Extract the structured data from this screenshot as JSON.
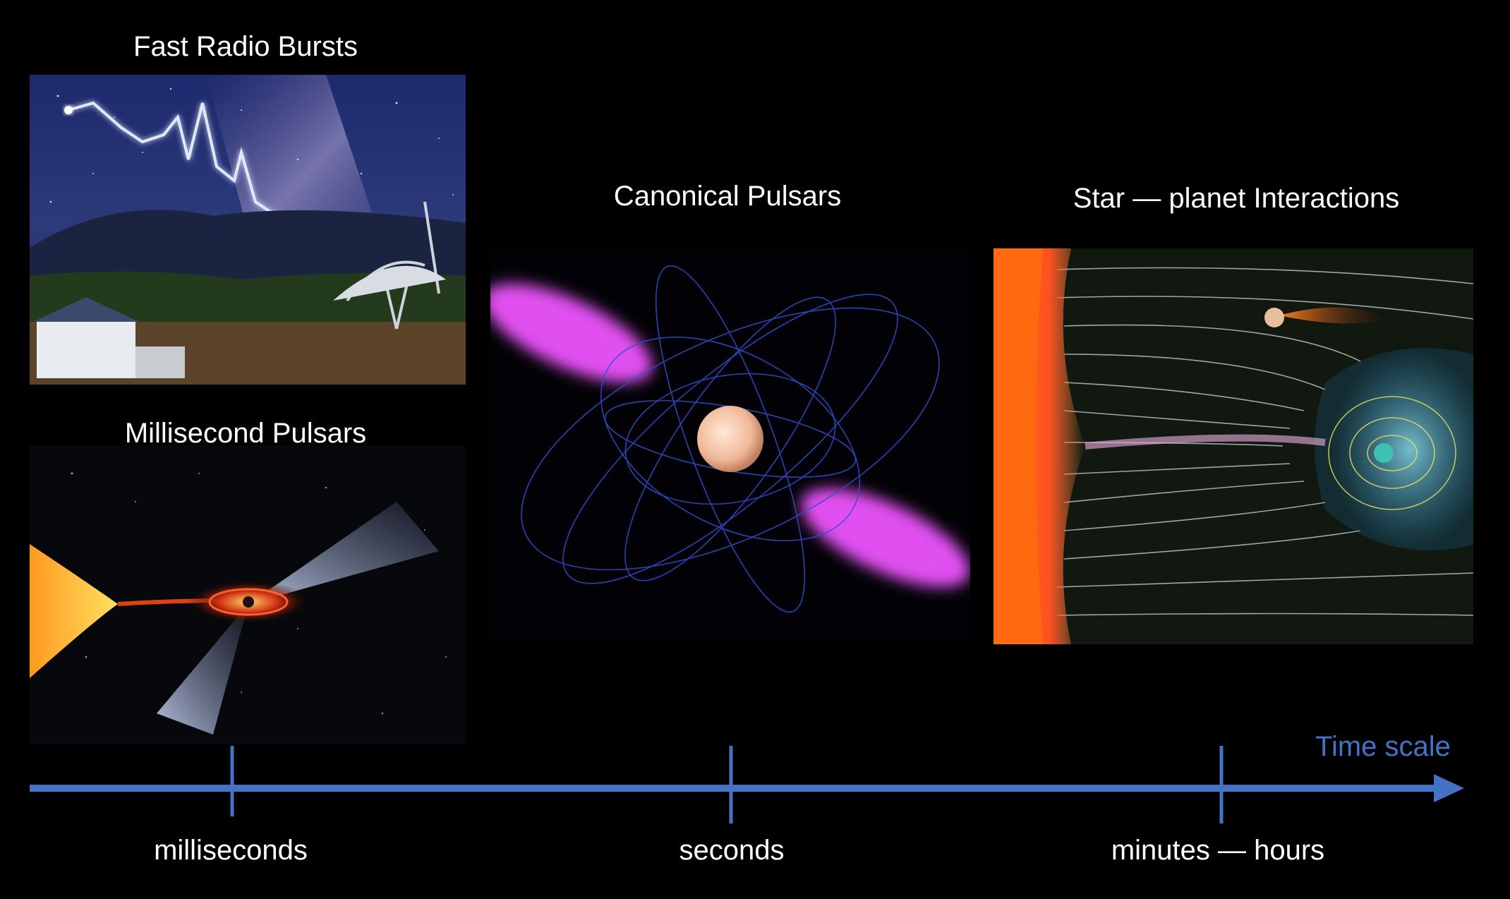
{
  "panels": {
    "frb": {
      "title": "Fast Radio Bursts"
    },
    "msp": {
      "title": "Millisecond Pulsars"
    },
    "canonical": {
      "title": "Canonical Pulsars"
    },
    "star_planet": {
      "title": "Star — planet Interactions"
    }
  },
  "timeline": {
    "axis_title": "Time scale",
    "ticks": [
      {
        "label": "milliseconds"
      },
      {
        "label": "seconds"
      },
      {
        "label": "minutes — hours"
      }
    ],
    "color": "#4472c4"
  }
}
